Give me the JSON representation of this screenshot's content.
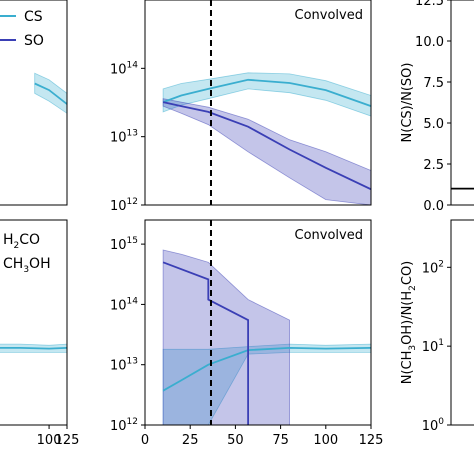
{
  "chart_data": [
    {
      "type": "line",
      "panel": "top-left",
      "yscale": "log",
      "xlim": [
        0,
        125
      ],
      "ylim_exp": [
        12,
        15
      ],
      "xticks": [],
      "yticks": [],
      "legend": {
        "position": "top-right",
        "entries": [
          {
            "text": "CS",
            "series": 0
          },
          {
            "text": "SO",
            "series": 1
          }
        ]
      },
      "series": [
        {
          "name": "CS",
          "color": "#3aaecf",
          "x": [
            80,
            100,
            125
          ],
          "y": [
            60000000000000.0,
            48000000000000.0,
            30000000000000.0
          ],
          "lo": [
            43000000000000.0,
            33000000000000.0,
            22000000000000.0
          ],
          "hi": [
            85000000000000.0,
            68000000000000.0,
            43000000000000.0
          ]
        },
        {
          "name": "SO",
          "color": "#3a3fb5",
          "x": [],
          "y": []
        }
      ]
    },
    {
      "type": "line",
      "panel": "top-middle",
      "yscale": "log",
      "xlim": [
        0,
        125
      ],
      "ylim_exp": [
        12,
        15
      ],
      "annotation": "Convolved",
      "vline_x": 36.5,
      "xticks": [],
      "yticks": [
        {
          "base": "10",
          "exp": "12",
          "value_exp": 12
        },
        {
          "base": "10",
          "exp": "13",
          "value_exp": 13
        },
        {
          "base": "10",
          "exp": "14",
          "value_exp": 14
        }
      ],
      "series": [
        {
          "name": "CS",
          "color": "#3aaecf",
          "x": [
            10,
            20,
            35,
            57,
            80,
            100,
            125
          ],
          "y": [
            32000000000000.0,
            40000000000000.0,
            50000000000000.0,
            68000000000000.0,
            61000000000000.0,
            48000000000000.0,
            28000000000000.0
          ],
          "lo": [
            23000000000000.0,
            29000000000000.0,
            36000000000000.0,
            50000000000000.0,
            44000000000000.0,
            34000000000000.0,
            20000000000000.0
          ],
          "hi": [
            50000000000000.0,
            60000000000000.0,
            69000000000000.0,
            86000000000000.0,
            83000000000000.0,
            66000000000000.0,
            40000000000000.0
          ]
        },
        {
          "name": "SO",
          "color": "#3a3fb5",
          "x": [
            10,
            20,
            35,
            57,
            80,
            100,
            125
          ],
          "y": [
            32000000000000.0,
            28000000000000.0,
            23000000000000.0,
            14000000000000.0,
            6500000000000.0,
            3500000000000.0,
            1700000000000.0
          ],
          "lo": [
            28000000000000.0,
            22000000000000.0,
            15000000000000.0,
            6000000000000.0,
            2500000000000.0,
            1200000000000.0,
            1000000000000.0
          ],
          "hi": [
            36000000000000.0,
            32000000000000.0,
            27000000000000.0,
            18000000000000.0,
            9000000000000.0,
            6000000000000.0,
            3200000000000.0
          ]
        }
      ]
    },
    {
      "type": "line",
      "panel": "top-right",
      "ylim": [
        0,
        12.5
      ],
      "xticks": [],
      "yticks": [
        {
          "text": "0.0",
          "value": 0
        },
        {
          "text": "2.5",
          "value": 2.5
        },
        {
          "text": "5.0",
          "value": 5
        },
        {
          "text": "7.5",
          "value": 7.5
        },
        {
          "text": "10.0",
          "value": 10
        },
        {
          "text": "12.5",
          "value": 12.5
        }
      ],
      "ylabel": "N(CS)/N(SO)",
      "series": [
        {
          "name": "",
          "color": "#000000",
          "x": [
            0,
            125
          ],
          "y": [
            1.0,
            1.0
          ]
        }
      ]
    },
    {
      "type": "line",
      "panel": "bottom-left",
      "yscale": "log",
      "xlim": [
        0,
        125
      ],
      "ylim_exp": [
        12,
        15.4
      ],
      "xticks": [
        {
          "text": "100",
          "value": 100
        },
        {
          "text": "125",
          "value": 125
        }
      ],
      "legend": {
        "position": "top-left",
        "entries": [
          {
            "text": "H",
            "sub": "2",
            "tail": "CO",
            "series": 0
          },
          {
            "text": "CH",
            "sub": "3",
            "tail": "OH",
            "series": 1
          }
        ]
      },
      "series": [
        {
          "name": "H2CO",
          "color": "#3aaecf",
          "x": [
            0,
            60,
            100,
            125
          ],
          "y": [
            19000000000000.0,
            19000000000000.0,
            18500000000000.0,
            19000000000000.0
          ],
          "lo": [
            16000000000000.0,
            16000000000000.0,
            16000000000000.0,
            16000000000000.0
          ],
          "hi": [
            22000000000000.0,
            22000000000000.0,
            21000000000000.0,
            22000000000000.0
          ]
        },
        {
          "name": "CH3OH",
          "color": "#3a3fb5",
          "x": [],
          "y": []
        }
      ]
    },
    {
      "type": "line",
      "panel": "bottom-middle",
      "yscale": "log",
      "xlim": [
        0,
        125
      ],
      "ylim_exp": [
        12,
        15.4
      ],
      "annotation": "Convolved",
      "vline_x": 36.5,
      "xticks": [
        {
          "text": "0",
          "value": 0
        },
        {
          "text": "25",
          "value": 25
        },
        {
          "text": "50",
          "value": 50
        },
        {
          "text": "75",
          "value": 75
        },
        {
          "text": "100",
          "value": 100
        },
        {
          "text": "125",
          "value": 125
        }
      ],
      "yticks": [
        {
          "base": "10",
          "exp": "12",
          "value_exp": 12
        },
        {
          "base": "10",
          "exp": "13",
          "value_exp": 13
        },
        {
          "base": "10",
          "exp": "14",
          "value_exp": 14
        },
        {
          "base": "10",
          "exp": "15",
          "value_exp": 15
        }
      ],
      "series": [
        {
          "name": "H2CO",
          "color": "#3aaecf",
          "x": [
            10,
            20,
            35,
            57,
            80,
            100,
            125
          ],
          "y": [
            3700000000000.0,
            5500000000000.0,
            10000000000000.0,
            17500000000000.0,
            19000000000000.0,
            18500000000000.0,
            19000000000000.0
          ],
          "lo": [
            1000000000000.0,
            1000000000000.0,
            1000000000000.0,
            15000000000000.0,
            16000000000000.0,
            16000000000000.0,
            16000000000000.0
          ],
          "hi": [
            18000000000000.0,
            18000000000000.0,
            18000000000000.0,
            20000000000000.0,
            22000000000000.0,
            21000000000000.0,
            22000000000000.0
          ]
        },
        {
          "name": "CH3OH",
          "color": "#3a3fb5",
          "x": [
            10,
            35,
            35,
            57,
            57
          ],
          "y": [
            500000000000000.0,
            260000000000000.0,
            120000000000000.0,
            55000000000000.0,
            1000000000000.0
          ],
          "band_x": [
            10,
            20,
            35,
            57,
            80
          ],
          "lo": [
            1000000000000.0,
            1000000000000.0,
            1000000000000.0,
            1000000000000.0,
            1000000000000.0
          ],
          "hi": [
            800000000000000.0,
            680000000000000.0,
            500000000000000.0,
            120000000000000.0,
            55000000000000.0
          ]
        }
      ]
    },
    {
      "type": "line",
      "panel": "bottom-right",
      "yscale": "log",
      "ylim_exp": [
        0,
        2.6
      ],
      "xticks": [],
      "yticks": [
        {
          "base": "10",
          "exp": "0",
          "value_exp": 0
        },
        {
          "base": "10",
          "exp": "1",
          "value_exp": 1
        },
        {
          "base": "10",
          "exp": "2",
          "value_exp": 2
        }
      ],
      "ylabel": {
        "parts": [
          {
            "t": "N(CH"
          },
          {
            "t": "3",
            "sub": true
          },
          {
            "t": "OH)/N(H"
          },
          {
            "t": "2",
            "sub": true
          },
          {
            "t": "CO)"
          }
        ]
      },
      "series": []
    }
  ]
}
